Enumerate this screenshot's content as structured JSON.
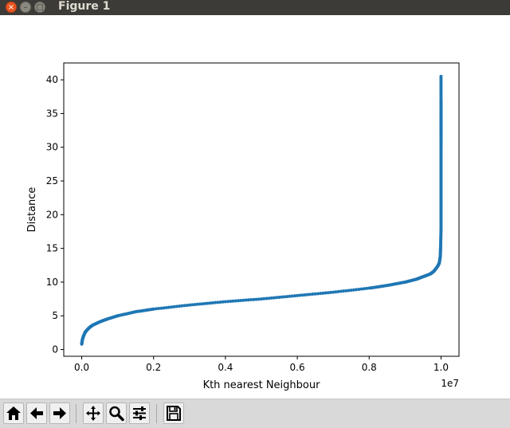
{
  "window": {
    "title": "Figure 1",
    "close_glyph": "×",
    "min_glyph": "–",
    "max_glyph": "□"
  },
  "toolbar": {
    "buttons": [
      {
        "name": "home-button",
        "icon": "home-icon"
      },
      {
        "name": "back-button",
        "icon": "arrow-left-icon"
      },
      {
        "name": "forward-button",
        "icon": "arrow-right-icon"
      },
      {
        "name": "pan-button",
        "icon": "move-icon"
      },
      {
        "name": "zoom-button",
        "icon": "magnifier-icon"
      },
      {
        "name": "configure-subplots-button",
        "icon": "sliders-icon"
      },
      {
        "name": "save-button",
        "icon": "floppy-disk-icon"
      }
    ]
  },
  "chart_data": {
    "type": "scatter",
    "title": "",
    "xlabel": "Kth nearest Neighbour",
    "ylabel": "Distance",
    "x_offset_label": "1e7",
    "xlim": [
      -0.05,
      1.05
    ],
    "ylim": [
      -1.0,
      42.5
    ],
    "xticks": [
      0.0,
      0.2,
      0.4,
      0.6,
      0.8,
      1.0
    ],
    "xtick_labels": [
      "0.0",
      "0.2",
      "0.4",
      "0.6",
      "0.8",
      "1.0"
    ],
    "yticks": [
      0,
      5,
      10,
      15,
      20,
      25,
      30,
      35,
      40
    ],
    "ytick_labels": [
      "0",
      "5",
      "10",
      "15",
      "20",
      "25",
      "30",
      "35",
      "40"
    ],
    "grid": false,
    "marker_color": "#1f77b4",
    "series": [
      {
        "x": [
          0.0,
          0.002,
          0.005,
          0.01,
          0.02,
          0.03,
          0.05,
          0.07,
          0.1,
          0.15,
          0.2,
          0.3,
          0.4,
          0.5,
          0.6,
          0.7,
          0.8,
          0.85,
          0.9,
          0.93,
          0.95,
          0.97,
          0.98,
          0.99,
          0.995,
          0.998,
          0.999,
          1.0,
          1.0,
          1.0,
          1.0,
          1.0,
          1.0,
          1.0,
          1.0,
          1.0,
          1.0,
          1.0
        ],
        "y": [
          0.8,
          1.5,
          2.0,
          2.6,
          3.2,
          3.6,
          4.1,
          4.5,
          5.0,
          5.6,
          6.0,
          6.6,
          7.1,
          7.5,
          8.0,
          8.5,
          9.1,
          9.5,
          10.0,
          10.4,
          10.8,
          11.2,
          11.6,
          12.3,
          12.8,
          13.8,
          15.5,
          18.0,
          21.0,
          24.0,
          27.0,
          30.0,
          32.0,
          33.0,
          33.7,
          35.0,
          37.0,
          40.5
        ]
      }
    ]
  }
}
